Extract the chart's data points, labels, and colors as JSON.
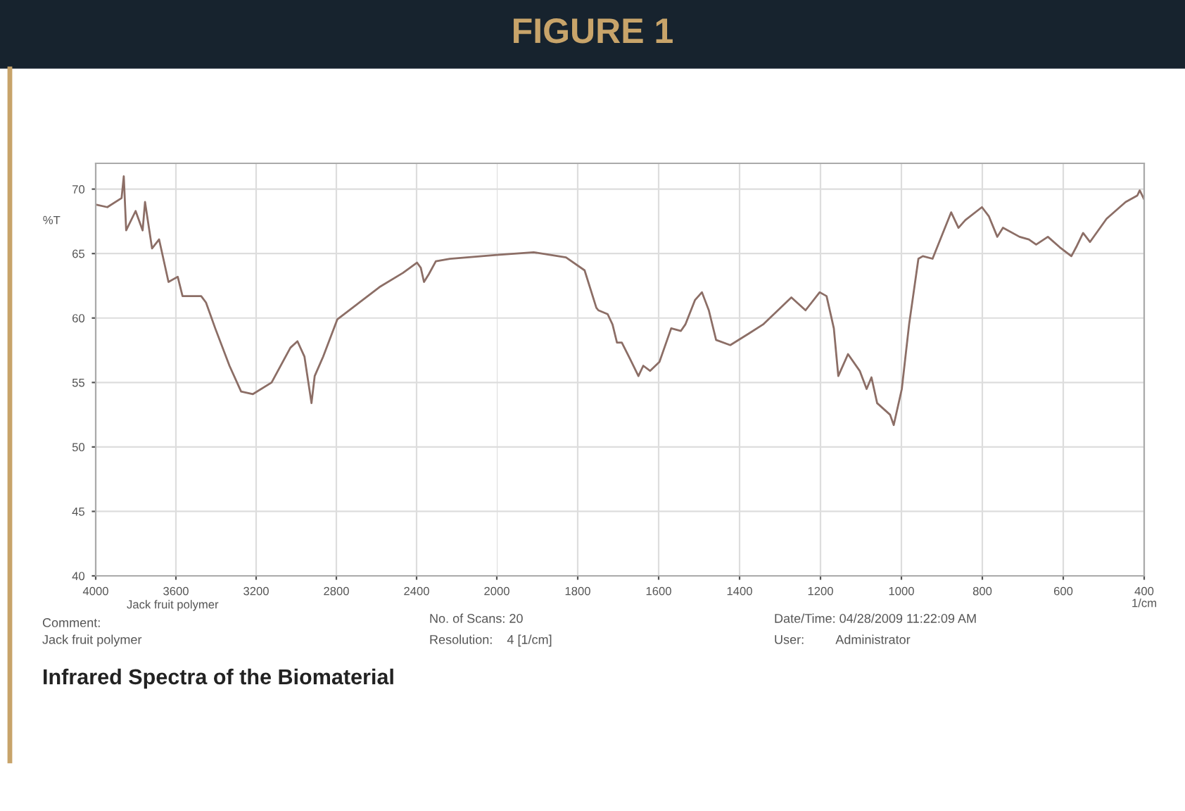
{
  "chart_data": [
    {
      "type": "line",
      "subtitle": "Infrared Spectra of the Biomaterial",
      "ylabel": "%T",
      "x": [
        4000,
        3942,
        3871,
        3860,
        3848,
        3801,
        3766,
        3754,
        3719,
        3684,
        3637,
        3591,
        3567,
        3474,
        3450,
        3404,
        3333,
        3275,
        3216,
        3123,
        3029,
        2994,
        2959,
        2924,
        2908,
        2866,
        2795,
        2702,
        2585,
        2468,
        2398,
        2379,
        2363,
        2339,
        2304,
        2234,
        2000
      ],
      "series": [
        {
          "color": "#8c6e66",
          "values": [
            68.8,
            68.6,
            69.3,
            71.0,
            66.8,
            68.3,
            66.8,
            69.0,
            65.4,
            66.1,
            62.8,
            63.2,
            61.7,
            61.7,
            61.2,
            59.2,
            56.3,
            54.3,
            54.1,
            55.0,
            57.7,
            58.2,
            57.0,
            53.4,
            55.5,
            57.0,
            59.9,
            61.0,
            62.4,
            63.5,
            64.3,
            63.9,
            62.8,
            63.4,
            64.4,
            64.6,
            64.9
          ]
        }
      ],
      "xlim": [
        4000,
        2000
      ],
      "xticks": [
        4000,
        3600,
        3200,
        2800,
        2400
      ],
      "ylim": [
        40,
        72
      ],
      "yticks": [
        40,
        45,
        50,
        55,
        60,
        65,
        70
      ],
      "grid": true,
      "line_style": "solid",
      "marker": "none",
      "annotations": [
        "Jack fruit polymer",
        "Comment:",
        "Jack fruit polymer",
        "No. of Scans: 20",
        "Resolution:    4 [1/cm]",
        "Date/Time: 04/28/2009 11:22:09 AM",
        "User:         Administrator"
      ]
    },
    {
      "type": "line",
      "title": "FIGURE 1",
      "xlabel": "1/cm",
      "x": [
        2000,
        1909,
        1829,
        1783,
        1754,
        1749,
        1726,
        1714,
        1703,
        1691,
        1667,
        1650,
        1638,
        1621,
        1598,
        1569,
        1545,
        1534,
        1510,
        1493,
        1476,
        1458,
        1423,
        1377,
        1342,
        1272,
        1237,
        1202,
        1185,
        1167,
        1156,
        1132,
        1103,
        1086,
        1074,
        1060,
        1028,
        1019,
        999,
        981,
        958,
        947,
        923,
        900,
        877,
        859,
        842,
        801,
        784,
        763,
        749,
        708,
        685,
        667,
        638,
        609,
        580,
        568,
        551,
        534,
        493,
        446,
        417,
        411,
        400
      ],
      "series": [
        {
          "color": "#8c6e66",
          "values": [
            64.9,
            65.1,
            64.7,
            63.7,
            60.8,
            60.6,
            60.3,
            59.5,
            58.1,
            58.1,
            56.6,
            55.5,
            56.3,
            55.9,
            56.6,
            59.2,
            59.0,
            59.5,
            61.4,
            62.0,
            60.6,
            58.3,
            57.9,
            58.8,
            59.5,
            61.6,
            60.6,
            62.0,
            61.7,
            59.2,
            55.5,
            57.2,
            55.9,
            54.5,
            55.4,
            53.4,
            52.5,
            51.7,
            54.5,
            59.5,
            64.6,
            64.8,
            64.6,
            66.4,
            68.2,
            67.0,
            67.6,
            68.6,
            67.9,
            66.3,
            67.0,
            66.3,
            66.1,
            65.7,
            66.3,
            65.5,
            64.8,
            65.5,
            66.6,
            65.9,
            67.7,
            69.0,
            69.5,
            69.9,
            69.2
          ]
        }
      ],
      "xlim": [
        2000,
        400
      ],
      "xticks": [
        2000,
        1800,
        1600,
        1400,
        1200,
        1000,
        800,
        600,
        400
      ],
      "ylim": [
        40,
        72
      ],
      "yticks": [
        40,
        45,
        50,
        55,
        60,
        65,
        70
      ],
      "tick_labels": "x",
      "grid": true,
      "line_style": "solid",
      "marker": "none"
    }
  ]
}
